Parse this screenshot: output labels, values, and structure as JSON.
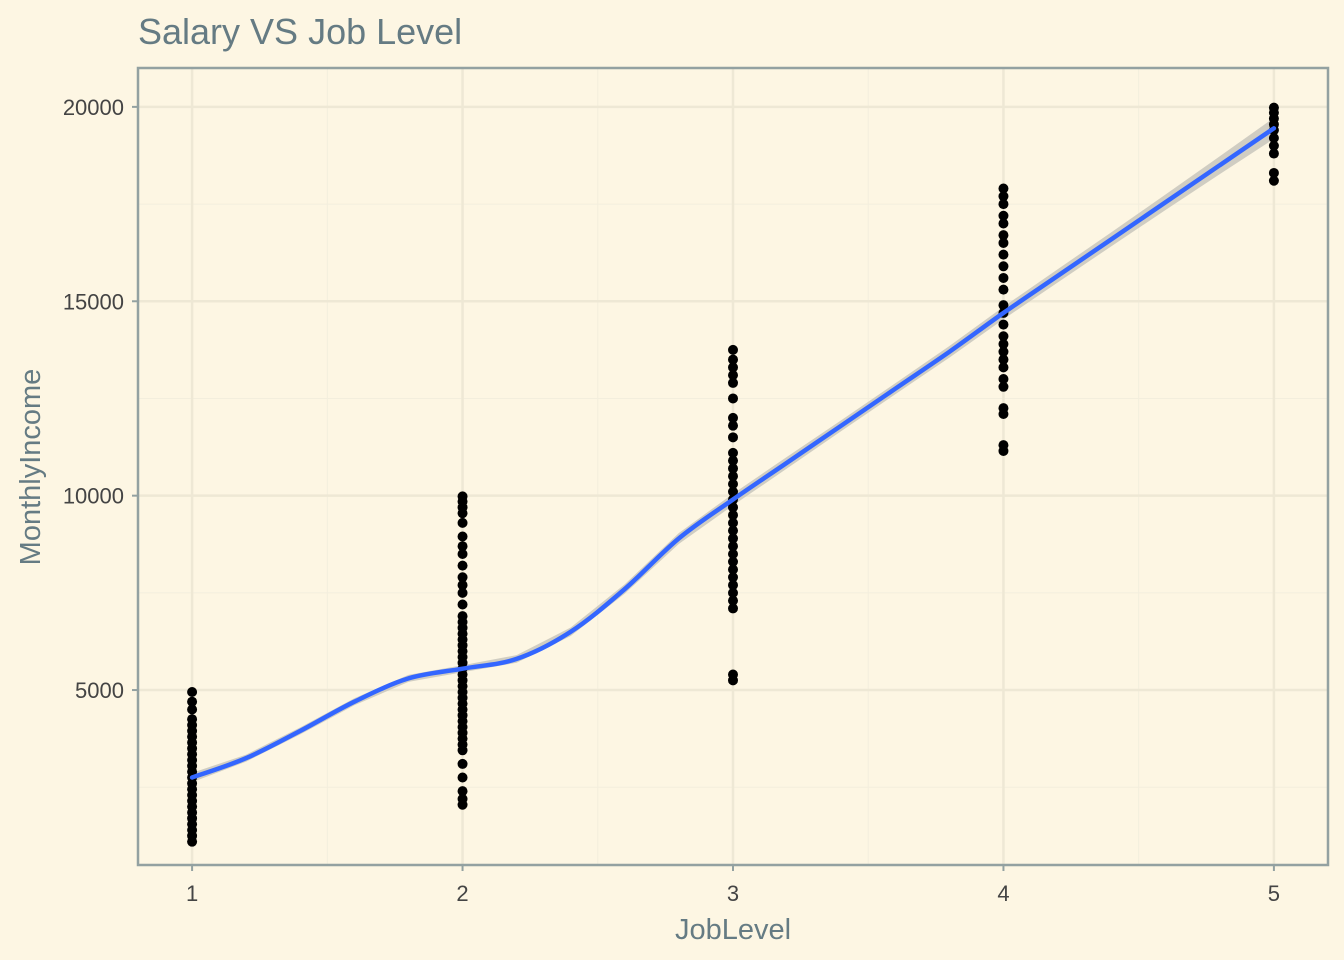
{
  "chart_data": {
    "type": "scatter",
    "title": "Salary VS Job Level",
    "xlabel": "JobLevel",
    "ylabel": "MonthlyIncome",
    "xlim": [
      0.8,
      5.2
    ],
    "ylim": [
      500,
      21000
    ],
    "x_ticks": [
      1,
      2,
      3,
      4,
      5
    ],
    "y_ticks": [
      5000,
      10000,
      15000,
      20000
    ],
    "grid": true,
    "legend": "none",
    "colors": {
      "background": "#fdf6e3",
      "panel_border": "#93a1a1",
      "grid_major": "#eee8d5",
      "grid_minor": "#f3eedd",
      "points": "#000000",
      "smooth_line": "#3366ff",
      "confidence_band": "#c8c5bc"
    },
    "series": [
      {
        "values": [
          {
            "x": 1,
            "y": 1100
          },
          {
            "x": 1,
            "y": 1250
          },
          {
            "x": 1,
            "y": 1400
          },
          {
            "x": 1,
            "y": 1550
          },
          {
            "x": 1,
            "y": 1700
          },
          {
            "x": 1,
            "y": 1850
          },
          {
            "x": 1,
            "y": 2000
          },
          {
            "x": 1,
            "y": 2150
          },
          {
            "x": 1,
            "y": 2300
          },
          {
            "x": 1,
            "y": 2450
          },
          {
            "x": 1,
            "y": 2600
          },
          {
            "x": 1,
            "y": 2750
          },
          {
            "x": 1,
            "y": 2900
          },
          {
            "x": 1,
            "y": 3050
          },
          {
            "x": 1,
            "y": 3200
          },
          {
            "x": 1,
            "y": 3350
          },
          {
            "x": 1,
            "y": 3500
          },
          {
            "x": 1,
            "y": 3650
          },
          {
            "x": 1,
            "y": 3800
          },
          {
            "x": 1,
            "y": 3950
          },
          {
            "x": 1,
            "y": 4100
          },
          {
            "x": 1,
            "y": 4250
          },
          {
            "x": 1,
            "y": 4500
          },
          {
            "x": 1,
            "y": 4700
          },
          {
            "x": 1,
            "y": 4950
          },
          {
            "x": 2,
            "y": 2050
          },
          {
            "x": 2,
            "y": 2200
          },
          {
            "x": 2,
            "y": 2400
          },
          {
            "x": 2,
            "y": 2750
          },
          {
            "x": 2,
            "y": 3100
          },
          {
            "x": 2,
            "y": 3450
          },
          {
            "x": 2,
            "y": 3600
          },
          {
            "x": 2,
            "y": 3750
          },
          {
            "x": 2,
            "y": 3900
          },
          {
            "x": 2,
            "y": 4050
          },
          {
            "x": 2,
            "y": 4200
          },
          {
            "x": 2,
            "y": 4350
          },
          {
            "x": 2,
            "y": 4500
          },
          {
            "x": 2,
            "y": 4650
          },
          {
            "x": 2,
            "y": 4800
          },
          {
            "x": 2,
            "y": 4950
          },
          {
            "x": 2,
            "y": 5100
          },
          {
            "x": 2,
            "y": 5250
          },
          {
            "x": 2,
            "y": 5400
          },
          {
            "x": 2,
            "y": 5550
          },
          {
            "x": 2,
            "y": 5700
          },
          {
            "x": 2,
            "y": 5850
          },
          {
            "x": 2,
            "y": 6000
          },
          {
            "x": 2,
            "y": 6150
          },
          {
            "x": 2,
            "y": 6300
          },
          {
            "x": 2,
            "y": 6450
          },
          {
            "x": 2,
            "y": 6600
          },
          {
            "x": 2,
            "y": 6750
          },
          {
            "x": 2,
            "y": 6900
          },
          {
            "x": 2,
            "y": 7200
          },
          {
            "x": 2,
            "y": 7500
          },
          {
            "x": 2,
            "y": 7700
          },
          {
            "x": 2,
            "y": 7900
          },
          {
            "x": 2,
            "y": 8200
          },
          {
            "x": 2,
            "y": 8500
          },
          {
            "x": 2,
            "y": 8700
          },
          {
            "x": 2,
            "y": 8950
          },
          {
            "x": 2,
            "y": 9300
          },
          {
            "x": 2,
            "y": 9550
          },
          {
            "x": 2,
            "y": 9700
          },
          {
            "x": 2,
            "y": 9850
          },
          {
            "x": 2,
            "y": 9980
          },
          {
            "x": 3,
            "y": 5250
          },
          {
            "x": 3,
            "y": 5400
          },
          {
            "x": 3,
            "y": 7100
          },
          {
            "x": 3,
            "y": 7300
          },
          {
            "x": 3,
            "y": 7500
          },
          {
            "x": 3,
            "y": 7700
          },
          {
            "x": 3,
            "y": 7900
          },
          {
            "x": 3,
            "y": 8100
          },
          {
            "x": 3,
            "y": 8300
          },
          {
            "x": 3,
            "y": 8500
          },
          {
            "x": 3,
            "y": 8700
          },
          {
            "x": 3,
            "y": 8900
          },
          {
            "x": 3,
            "y": 9100
          },
          {
            "x": 3,
            "y": 9300
          },
          {
            "x": 3,
            "y": 9500
          },
          {
            "x": 3,
            "y": 9700
          },
          {
            "x": 3,
            "y": 9900
          },
          {
            "x": 3,
            "y": 10100
          },
          {
            "x": 3,
            "y": 10300
          },
          {
            "x": 3,
            "y": 10500
          },
          {
            "x": 3,
            "y": 10700
          },
          {
            "x": 3,
            "y": 10900
          },
          {
            "x": 3,
            "y": 11100
          },
          {
            "x": 3,
            "y": 11500
          },
          {
            "x": 3,
            "y": 11800
          },
          {
            "x": 3,
            "y": 12000
          },
          {
            "x": 3,
            "y": 12500
          },
          {
            "x": 3,
            "y": 12900
          },
          {
            "x": 3,
            "y": 13100
          },
          {
            "x": 3,
            "y": 13300
          },
          {
            "x": 3,
            "y": 13500
          },
          {
            "x": 3,
            "y": 13750
          },
          {
            "x": 4,
            "y": 11150
          },
          {
            "x": 4,
            "y": 11300
          },
          {
            "x": 4,
            "y": 12100
          },
          {
            "x": 4,
            "y": 12250
          },
          {
            "x": 4,
            "y": 12800
          },
          {
            "x": 4,
            "y": 13000
          },
          {
            "x": 4,
            "y": 13300
          },
          {
            "x": 4,
            "y": 13500
          },
          {
            "x": 4,
            "y": 13700
          },
          {
            "x": 4,
            "y": 13900
          },
          {
            "x": 4,
            "y": 14100
          },
          {
            "x": 4,
            "y": 14400
          },
          {
            "x": 4,
            "y": 14700
          },
          {
            "x": 4,
            "y": 14900
          },
          {
            "x": 4,
            "y": 15300
          },
          {
            "x": 4,
            "y": 15600
          },
          {
            "x": 4,
            "y": 15900
          },
          {
            "x": 4,
            "y": 16200
          },
          {
            "x": 4,
            "y": 16500
          },
          {
            "x": 4,
            "y": 16700
          },
          {
            "x": 4,
            "y": 17000
          },
          {
            "x": 4,
            "y": 17200
          },
          {
            "x": 4,
            "y": 17500
          },
          {
            "x": 4,
            "y": 17700
          },
          {
            "x": 4,
            "y": 17900
          },
          {
            "x": 5,
            "y": 18100
          },
          {
            "x": 5,
            "y": 18300
          },
          {
            "x": 5,
            "y": 18800
          },
          {
            "x": 5,
            "y": 19000
          },
          {
            "x": 5,
            "y": 19200
          },
          {
            "x": 5,
            "y": 19400
          },
          {
            "x": 5,
            "y": 19550
          },
          {
            "x": 5,
            "y": 19700
          },
          {
            "x": 5,
            "y": 19850
          },
          {
            "x": 5,
            "y": 19980
          }
        ]
      }
    ],
    "smooth": {
      "x": [
        1.0,
        1.2,
        1.4,
        1.6,
        1.8,
        2.0,
        2.2,
        2.4,
        2.6,
        2.8,
        3.0,
        3.2,
        3.4,
        3.6,
        3.8,
        4.0,
        4.2,
        4.4,
        4.6,
        4.8,
        5.0
      ],
      "y": [
        2750,
        3250,
        3950,
        4700,
        5300,
        5550,
        5800,
        6500,
        7600,
        8900,
        9900,
        10850,
        11800,
        12750,
        13700,
        14700,
        15650,
        16600,
        17550,
        18500,
        19450
      ],
      "band_halfwidth": [
        120,
        90,
        90,
        90,
        90,
        90,
        100,
        110,
        120,
        140,
        150,
        150,
        140,
        140,
        150,
        160,
        170,
        180,
        200,
        230,
        270
      ]
    }
  }
}
